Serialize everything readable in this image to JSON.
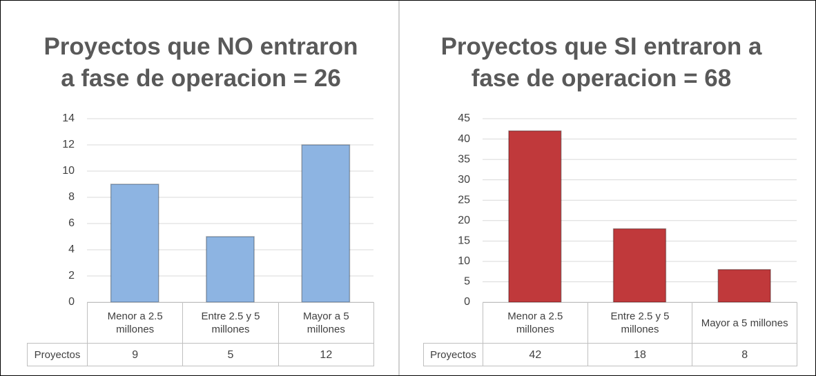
{
  "chart_data": [
    {
      "type": "bar",
      "title": "Proyectos que NO entraron a fase de operacion = 26",
      "categories": [
        "Menor a 2.5 millones",
        "Entre 2.5 y 5 millones",
        "Mayor a 5 millones"
      ],
      "series": [
        {
          "name": "Proyectos",
          "color": "#8db4e2",
          "values": [
            9,
            5,
            12
          ]
        }
      ],
      "ylim": [
        0,
        14
      ],
      "yticks": [
        0,
        2,
        4,
        6,
        8,
        10,
        12,
        14
      ],
      "grid": true
    },
    {
      "type": "bar",
      "title": "Proyectos que SI entraron a fase de operacion = 68",
      "categories": [
        "Menor a 2.5 millones",
        "Entre 2.5 y 5 millones",
        "Mayor a 5 millones"
      ],
      "series": [
        {
          "name": "Proyectos",
          "color": "#c0393b",
          "values": [
            42,
            18,
            8
          ]
        }
      ],
      "ylim": [
        0,
        45
      ],
      "yticks": [
        0,
        5,
        10,
        15,
        20,
        25,
        30,
        35,
        40,
        45
      ],
      "grid": true
    }
  ]
}
